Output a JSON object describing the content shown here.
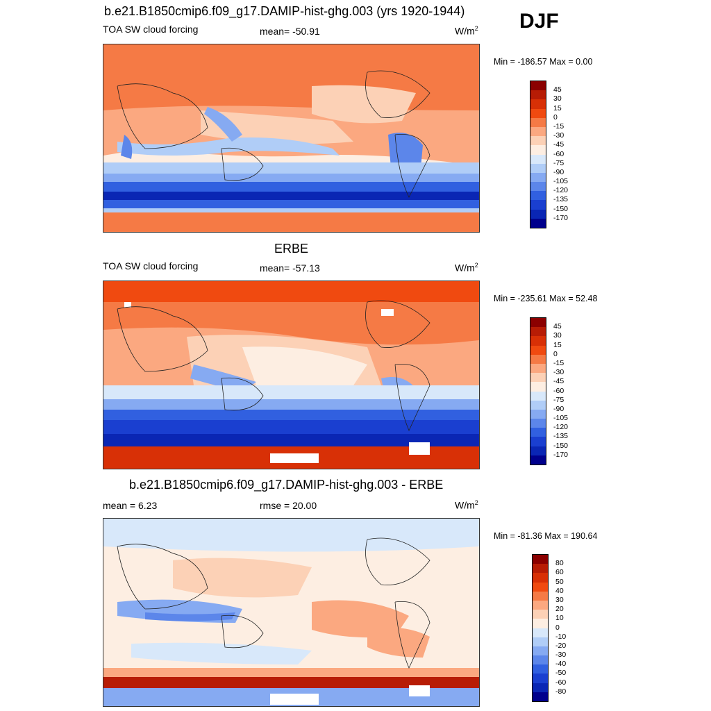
{
  "season": "DJF",
  "units_base": "W/m",
  "units_exp": "2",
  "panel1": {
    "title": "b.e21.B1850cmip6.f09_g17.DAMIP-hist-ghg.003 (yrs 1920-1944)",
    "left_label": "TOA SW cloud forcing",
    "mean_label": "mean= -50.91",
    "minmax": "Min = -186.57 Max =   0.00"
  },
  "panel2": {
    "title": "ERBE",
    "left_label": "TOA SW cloud forcing",
    "mean_label": "mean= -57.13",
    "minmax": "Min = -235.61 Max =  52.48"
  },
  "panel3": {
    "title": "b.e21.B1850cmip6.f09_g17.DAMIP-hist-ghg.003 - ERBE",
    "mean_label": "mean =   6.23",
    "rmse_label": "rmse =  20.00",
    "minmax": "Min = -81.36 Max = 190.64"
  },
  "chart_data": [
    {
      "type": "heatmap",
      "title": "b.e21.B1850cmip6.f09_g17.DAMIP-hist-ghg.003 (yrs 1920-1944)",
      "variable": "TOA SW cloud forcing",
      "units": "W/m2",
      "mean": -50.91,
      "min": -186.57,
      "max": 0.0,
      "colorbar_levels": [
        45,
        30,
        15,
        0,
        -15,
        -30,
        -45,
        -60,
        -75,
        -90,
        -105,
        -120,
        -135,
        -150,
        -170
      ],
      "colorbar_colors": [
        "#8b0000",
        "#b71c05",
        "#d83006",
        "#f04a10",
        "#f57a45",
        "#fba880",
        "#fcd1b6",
        "#fdeee2",
        "#d8e8fa",
        "#b0cdf7",
        "#86aaf2",
        "#5c86ea",
        "#3160e0",
        "#1a3fd0",
        "#0a26b4",
        "#00008c"
      ]
    },
    {
      "type": "heatmap",
      "title": "ERBE",
      "variable": "TOA SW cloud forcing",
      "units": "W/m2",
      "mean": -57.13,
      "min": -235.61,
      "max": 52.48,
      "colorbar_levels": [
        45,
        30,
        15,
        0,
        -15,
        -30,
        -45,
        -60,
        -75,
        -90,
        -105,
        -120,
        -135,
        -150,
        -170
      ],
      "colorbar_colors": [
        "#8b0000",
        "#b71c05",
        "#d83006",
        "#f04a10",
        "#f57a45",
        "#fba880",
        "#fcd1b6",
        "#fdeee2",
        "#d8e8fa",
        "#b0cdf7",
        "#86aaf2",
        "#5c86ea",
        "#3160e0",
        "#1a3fd0",
        "#0a26b4",
        "#00008c"
      ]
    },
    {
      "type": "heatmap",
      "title": "b.e21.B1850cmip6.f09_g17.DAMIP-hist-ghg.003 - ERBE",
      "units": "W/m2",
      "mean": 6.23,
      "rmse": 20.0,
      "min": -81.36,
      "max": 190.64,
      "colorbar_levels": [
        80,
        60,
        50,
        40,
        30,
        20,
        10,
        0,
        -10,
        -20,
        -30,
        -40,
        -50,
        -60,
        -80
      ],
      "colorbar_colors": [
        "#8b0000",
        "#b71c05",
        "#d83006",
        "#f04a10",
        "#f57a45",
        "#fba880",
        "#fcd1b6",
        "#fdeee2",
        "#d8e8fa",
        "#b0cdf7",
        "#86aaf2",
        "#5c86ea",
        "#3160e0",
        "#1a3fd0",
        "#0a26b4",
        "#00008c"
      ]
    }
  ]
}
